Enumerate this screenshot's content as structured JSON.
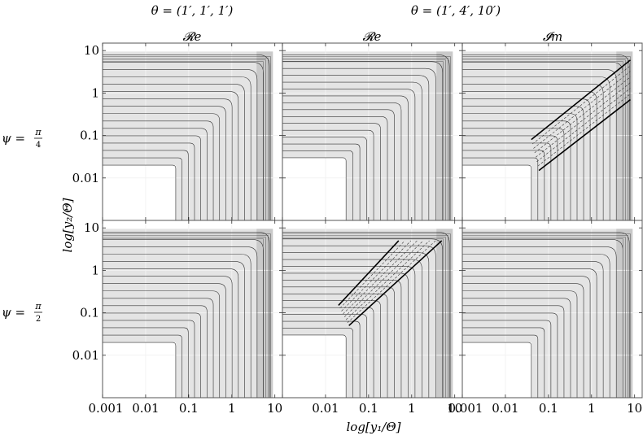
{
  "figure": {
    "column_headers": [
      {
        "text": "θ = (1′, 1′, 1′)"
      },
      {
        "text": "θ = (1′, 4′, 10′)"
      }
    ],
    "row_labels": [
      {
        "psi": "ψ =",
        "num": "π",
        "den": "4"
      },
      {
        "psi": "ψ =",
        "num": "π",
        "den": "2"
      }
    ],
    "panel_titles": [
      "𝓡e",
      "𝓡e",
      "𝓘m"
    ],
    "xlabel": "log[y₁/Θ]",
    "ylabel": "log[y₂/Θ]"
  },
  "chart_data": [
    {
      "type": "contour",
      "row": 0,
      "col": 0,
      "component": "𝓡e",
      "x_scale": "log",
      "y_scale": "log",
      "xlim": [
        0.001,
        15
      ],
      "ylim": [
        0.001,
        15
      ],
      "x_ticks": [
        "0.001",
        "0.01",
        "0.1",
        "1",
        "10"
      ],
      "y_ticks": [
        "0.01",
        "0.1",
        "1",
        "10"
      ],
      "corner": [
        0.05,
        0.02
      ],
      "diagonal_lines": false
    },
    {
      "type": "contour",
      "row": 0,
      "col": 1,
      "component": "𝓡e",
      "x_scale": "log",
      "y_scale": "log",
      "xlim": [
        0.001,
        15
      ],
      "ylim": [
        0.001,
        15
      ],
      "x_ticks": [
        "0.01",
        "0.1",
        "1",
        "10"
      ],
      "y_ticks": [],
      "corner": [
        0.03,
        0.03
      ],
      "diagonal_lines": false
    },
    {
      "type": "contour",
      "row": 0,
      "col": 2,
      "component": "𝓘m",
      "x_scale": "log",
      "y_scale": "log",
      "xlim": [
        0.001,
        15
      ],
      "ylim": [
        0.001,
        15
      ],
      "x_ticks": [
        "0.01",
        "0.1",
        "1",
        "10"
      ],
      "y_ticks": [],
      "corner": [
        0.04,
        0.02
      ],
      "diagonal_lines": true
    },
    {
      "type": "contour",
      "row": 1,
      "col": 0,
      "component": "𝓡e",
      "x_scale": "log",
      "y_scale": "log",
      "xlim": [
        0.001,
        15
      ],
      "ylim": [
        0.001,
        15
      ],
      "x_ticks": [
        "0.001",
        "0.01",
        "0.1",
        "1",
        "10"
      ],
      "y_ticks": [
        "0.01",
        "0.1",
        "1",
        "10"
      ],
      "corner": [
        0.05,
        0.02
      ],
      "diagonal_lines": false
    },
    {
      "type": "contour",
      "row": 1,
      "col": 1,
      "component": "𝓡e",
      "x_scale": "log",
      "y_scale": "log",
      "xlim": [
        0.001,
        15
      ],
      "ylim": [
        0.001,
        15
      ],
      "x_ticks": [
        "0.01",
        "0.1",
        "1",
        "10"
      ],
      "y_ticks": [],
      "corner": [
        0.03,
        0.03
      ],
      "diagonal_lines": true
    },
    {
      "type": "contour",
      "row": 1,
      "col": 2,
      "component": "𝓘m",
      "x_scale": "log",
      "y_scale": "log",
      "xlim": [
        0.001,
        15
      ],
      "ylim": [
        0.001,
        15
      ],
      "x_ticks": [
        "0.001",
        "0.01",
        "0.1",
        "1",
        "10"
      ],
      "y_ticks": [],
      "corner": [
        0.04,
        0.02
      ],
      "diagonal_lines": false
    }
  ]
}
